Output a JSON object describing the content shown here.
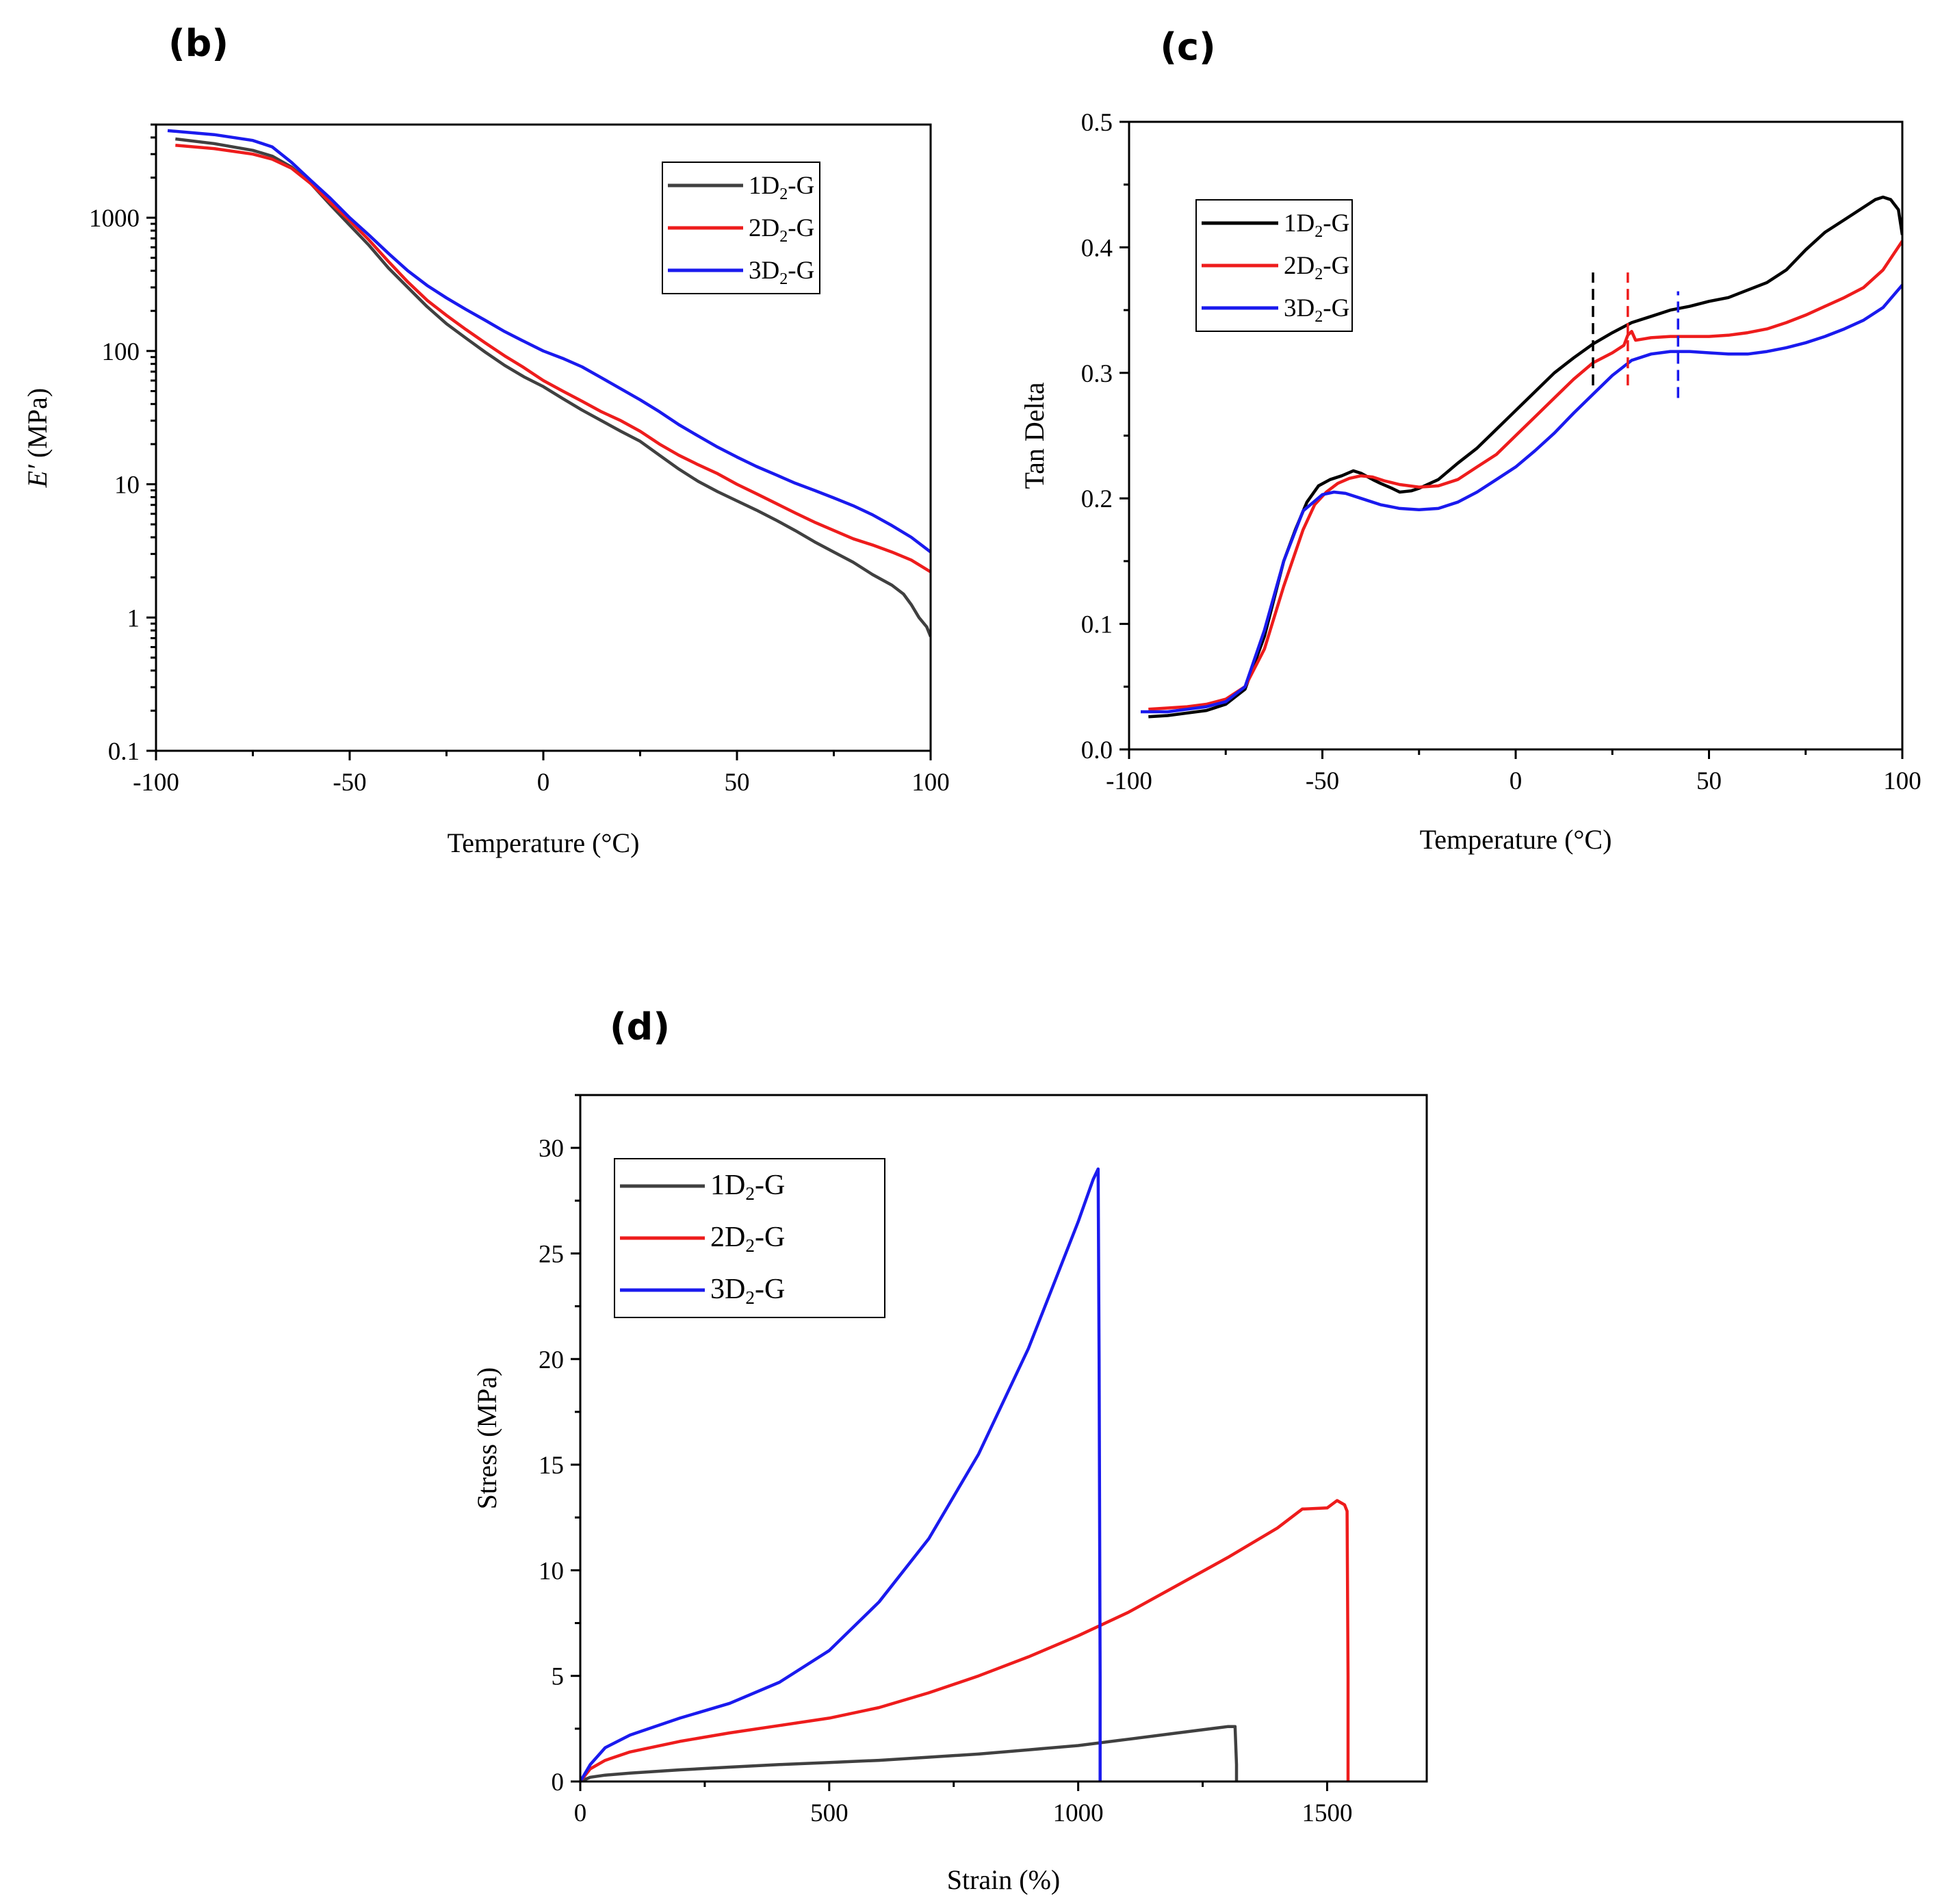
{
  "chart_data": [
    {
      "type": "line",
      "panel": "(b)",
      "xlabel": "Temperature (°C)",
      "ylabel_main": "E′",
      "ylabel_unit": " (MPa)",
      "xlim": [
        -100,
        100
      ],
      "ylim": [
        0.1,
        5000
      ],
      "y_scale": "log",
      "x_ticks": [
        -100,
        -50,
        0,
        50,
        100
      ],
      "y_ticks": [
        0.1,
        1,
        10,
        100,
        1000
      ],
      "y_tick_labels": [
        "0.1",
        "1",
        "10",
        "100",
        "1000"
      ],
      "legend": "top-right",
      "series": [
        {
          "name": "1D2-G",
          "legend_main": "1D",
          "legend_sub": "2",
          "legend_tail": "-G",
          "color": "#404040",
          "x": [
            -95,
            -85,
            -75,
            -70,
            -65,
            -60,
            -55,
            -50,
            -45,
            -40,
            -35,
            -30,
            -25,
            -20,
            -15,
            -10,
            -5,
            0,
            5,
            10,
            15,
            20,
            25,
            30,
            35,
            40,
            45,
            50,
            55,
            60,
            65,
            70,
            75,
            80,
            85,
            90,
            93,
            95,
            97,
            99,
            100
          ],
          "y": [
            3900,
            3600,
            3200,
            2900,
            2400,
            1800,
            1250,
            880,
            620,
            420,
            300,
            215,
            160,
            125,
            98,
            78,
            64,
            54,
            44,
            36,
            30,
            25,
            21,
            16.5,
            13,
            10.5,
            8.8,
            7.5,
            6.4,
            5.4,
            4.5,
            3.7,
            3.1,
            2.6,
            2.1,
            1.75,
            1.5,
            1.25,
            1.0,
            0.85,
            0.72
          ]
        },
        {
          "name": "2D2-G",
          "legend_main": "2D",
          "legend_sub": "2",
          "legend_tail": "-G",
          "color": "#ee1c1c",
          "x": [
            -95,
            -85,
            -75,
            -70,
            -65,
            -60,
            -55,
            -50,
            -45,
            -40,
            -35,
            -30,
            -25,
            -20,
            -15,
            -10,
            -5,
            0,
            5,
            10,
            15,
            20,
            25,
            30,
            35,
            40,
            45,
            50,
            55,
            60,
            65,
            70,
            75,
            80,
            85,
            90,
            95,
            100
          ],
          "y": [
            3500,
            3300,
            3000,
            2750,
            2350,
            1800,
            1300,
            950,
            680,
            470,
            330,
            240,
            185,
            145,
            115,
            92,
            75,
            60,
            50,
            42,
            35,
            30,
            25,
            20,
            16.5,
            14,
            12,
            10,
            8.5,
            7.2,
            6.1,
            5.2,
            4.5,
            3.9,
            3.5,
            3.1,
            2.7,
            2.2
          ]
        },
        {
          "name": "3D2-G",
          "legend_main": "3D",
          "legend_sub": "2",
          "legend_tail": "-G",
          "color": "#1a1aee",
          "x": [
            -97,
            -85,
            -75,
            -70,
            -65,
            -60,
            -55,
            -50,
            -45,
            -40,
            -35,
            -30,
            -25,
            -20,
            -15,
            -10,
            -5,
            0,
            5,
            10,
            15,
            20,
            25,
            30,
            35,
            40,
            45,
            50,
            55,
            60,
            65,
            70,
            75,
            80,
            85,
            90,
            95,
            100
          ],
          "y": [
            4500,
            4200,
            3800,
            3400,
            2600,
            1900,
            1400,
            1000,
            740,
            540,
            400,
            310,
            250,
            205,
            170,
            140,
            118,
            100,
            88,
            76,
            63,
            52,
            43,
            35,
            28,
            23,
            19,
            16,
            13.6,
            11.8,
            10.2,
            9,
            7.9,
            6.9,
            5.9,
            4.9,
            4.0,
            3.1
          ]
        }
      ],
      "dashed_markers": []
    },
    {
      "type": "line",
      "panel": "(c)",
      "xlabel": "Temperature (°C)",
      "ylabel": "Tan Delta",
      "xlim": [
        -100,
        100
      ],
      "ylim": [
        0.0,
        0.5
      ],
      "y_scale": "linear",
      "x_ticks": [
        -100,
        -50,
        0,
        50,
        100
      ],
      "y_ticks": [
        0.0,
        0.1,
        0.2,
        0.3,
        0.4,
        0.5
      ],
      "y_tick_labels": [
        "0.0",
        "0.1",
        "0.2",
        "0.3",
        "0.4",
        "0.5"
      ],
      "legend": "top-left",
      "series": [
        {
          "name": "1D2-G",
          "legend_main": "1D",
          "legend_sub": "2",
          "legend_tail": "-G",
          "color": "#000000",
          "x": [
            -95,
            -90,
            -85,
            -80,
            -75,
            -70,
            -65,
            -60,
            -57,
            -54,
            -51,
            -48,
            -45,
            -42,
            -40,
            -37,
            -35,
            -32,
            -30,
            -27,
            -25,
            -20,
            -15,
            -10,
            -5,
            0,
            5,
            10,
            15,
            20,
            25,
            30,
            35,
            40,
            45,
            50,
            55,
            60,
            65,
            70,
            75,
            80,
            85,
            90,
            93,
            95,
            97,
            99,
            100
          ],
          "y": [
            0.026,
            0.027,
            0.029,
            0.031,
            0.036,
            0.048,
            0.09,
            0.15,
            0.175,
            0.197,
            0.21,
            0.215,
            0.218,
            0.222,
            0.22,
            0.215,
            0.212,
            0.208,
            0.205,
            0.206,
            0.208,
            0.215,
            0.228,
            0.24,
            0.255,
            0.27,
            0.285,
            0.3,
            0.312,
            0.323,
            0.332,
            0.34,
            0.345,
            0.35,
            0.353,
            0.357,
            0.36,
            0.366,
            0.372,
            0.382,
            0.398,
            0.412,
            0.422,
            0.432,
            0.438,
            0.44,
            0.438,
            0.43,
            0.41
          ]
        },
        {
          "name": "2D2-G",
          "legend_main": "2D",
          "legend_sub": "2",
          "legend_tail": "-G",
          "color": "#ee1c1c",
          "x": [
            -95,
            -90,
            -85,
            -80,
            -75,
            -70,
            -65,
            -60,
            -55,
            -52,
            -49,
            -46,
            -43,
            -40,
            -37,
            -34,
            -30,
            -25,
            -20,
            -15,
            -10,
            -5,
            0,
            5,
            10,
            15,
            20,
            25,
            28,
            29,
            30,
            31,
            33,
            35,
            40,
            45,
            50,
            55,
            60,
            65,
            70,
            75,
            80,
            85,
            90,
            95,
            100
          ],
          "y": [
            0.032,
            0.033,
            0.034,
            0.036,
            0.04,
            0.05,
            0.08,
            0.13,
            0.175,
            0.195,
            0.205,
            0.212,
            0.216,
            0.218,
            0.217,
            0.214,
            0.211,
            0.209,
            0.21,
            0.215,
            0.225,
            0.235,
            0.25,
            0.265,
            0.28,
            0.295,
            0.308,
            0.316,
            0.322,
            0.33,
            0.333,
            0.326,
            0.327,
            0.328,
            0.329,
            0.329,
            0.329,
            0.33,
            0.332,
            0.335,
            0.34,
            0.346,
            0.353,
            0.36,
            0.368,
            0.382,
            0.405
          ]
        },
        {
          "name": "3D2-G",
          "legend_main": "3D",
          "legend_sub": "2",
          "legend_tail": "-G",
          "color": "#1a1aee",
          "x": [
            -97,
            -90,
            -85,
            -80,
            -75,
            -70,
            -65,
            -60,
            -55,
            -50,
            -47,
            -44,
            -40,
            -35,
            -30,
            -25,
            -20,
            -15,
            -10,
            -5,
            0,
            5,
            10,
            15,
            20,
            25,
            30,
            35,
            40,
            45,
            50,
            55,
            60,
            65,
            70,
            75,
            80,
            85,
            90,
            95,
            100
          ],
          "y": [
            0.03,
            0.03,
            0.032,
            0.034,
            0.038,
            0.05,
            0.095,
            0.15,
            0.19,
            0.203,
            0.205,
            0.204,
            0.2,
            0.195,
            0.192,
            0.191,
            0.192,
            0.197,
            0.205,
            0.215,
            0.225,
            0.238,
            0.252,
            0.268,
            0.283,
            0.298,
            0.31,
            0.315,
            0.317,
            0.317,
            0.316,
            0.315,
            0.315,
            0.317,
            0.32,
            0.324,
            0.329,
            0.335,
            0.342,
            0.352,
            0.37
          ]
        }
      ],
      "dashed_markers": [
        {
          "x": 20,
          "y0": 0.29,
          "y1": 0.38,
          "color": "#000000"
        },
        {
          "x": 29,
          "y0": 0.29,
          "y1": 0.38,
          "color": "#ee1c1c"
        },
        {
          "x": 42,
          "y0": 0.28,
          "y1": 0.365,
          "color": "#1a1aee"
        }
      ]
    },
    {
      "type": "line",
      "panel": "(d)",
      "xlabel": "Strain (%)",
      "ylabel": "Stress (MPa)",
      "xlim": [
        0,
        1700
      ],
      "ylim": [
        0,
        32.5
      ],
      "y_scale": "linear",
      "x_ticks": [
        0,
        500,
        1000,
        1500
      ],
      "y_ticks": [
        0,
        5,
        10,
        15,
        20,
        25,
        30
      ],
      "y_tick_labels": [
        "0",
        "5",
        "10",
        "15",
        "20",
        "25",
        "30"
      ],
      "legend": "top-left",
      "series": [
        {
          "name": "1D2-G",
          "legend_main": "1D",
          "legend_sub": "2",
          "legend_tail": "-G",
          "color": "#404040",
          "x": [
            0,
            20,
            50,
            100,
            200,
            300,
            400,
            500,
            600,
            700,
            800,
            900,
            1000,
            1100,
            1200,
            1300,
            1315,
            1318,
            1318
          ],
          "y": [
            0,
            0.2,
            0.3,
            0.4,
            0.55,
            0.68,
            0.8,
            0.9,
            1.0,
            1.15,
            1.3,
            1.5,
            1.7,
            2.0,
            2.3,
            2.6,
            2.6,
            0.8,
            0
          ]
        },
        {
          "name": "2D2-G",
          "legend_main": "2D",
          "legend_sub": "2",
          "legend_tail": "-G",
          "color": "#ee1c1c",
          "x": [
            0,
            20,
            50,
            100,
            200,
            300,
            400,
            500,
            600,
            700,
            800,
            900,
            1000,
            1100,
            1200,
            1300,
            1400,
            1450,
            1500,
            1520,
            1535,
            1540,
            1542,
            1542
          ],
          "y": [
            0,
            0.6,
            1.0,
            1.4,
            1.9,
            2.3,
            2.65,
            3.0,
            3.5,
            4.2,
            5.0,
            5.9,
            6.9,
            8.0,
            9.3,
            10.6,
            12.0,
            12.9,
            12.95,
            13.3,
            13.1,
            12.8,
            5.0,
            0
          ]
        },
        {
          "name": "3D2-G",
          "legend_main": "3D",
          "legend_sub": "2",
          "legend_tail": "-G",
          "color": "#1a1aee",
          "x": [
            0,
            20,
            50,
            100,
            150,
            200,
            300,
            400,
            500,
            600,
            700,
            800,
            900,
            950,
            1000,
            1030,
            1040,
            1042,
            1044,
            1044
          ],
          "y": [
            0,
            0.8,
            1.6,
            2.2,
            2.6,
            3.0,
            3.7,
            4.7,
            6.2,
            8.5,
            11.5,
            15.5,
            20.5,
            23.5,
            26.5,
            28.5,
            29.0,
            20.0,
            5.0,
            0
          ]
        }
      ],
      "dashed_markers": []
    }
  ]
}
